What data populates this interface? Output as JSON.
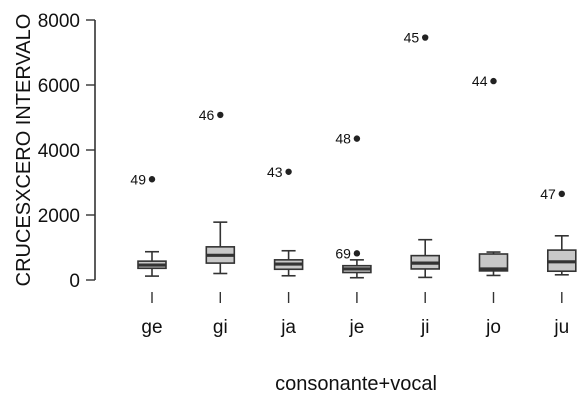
{
  "chart_data": {
    "type": "box",
    "title": "",
    "xlabel": "consonante+vocal",
    "ylabel": "CRUCESXCERO INTERVALO",
    "ylim": [
      0,
      8000
    ],
    "yticks": [
      0,
      2000,
      4000,
      6000,
      8000
    ],
    "y_tick_labels": [
      "0",
      "2000",
      "4000",
      "6000",
      "8000"
    ],
    "categories": [
      "ge",
      "gi",
      "ja",
      "je",
      "ji",
      "jo",
      "ju"
    ],
    "box_fill": "#c8c8c8",
    "stroke_color": "#333333",
    "boxes": [
      {
        "category": "ge",
        "whisker_low": 120,
        "q1": 360,
        "median": 460,
        "q3": 580,
        "whisker_high": 870
      },
      {
        "category": "gi",
        "whisker_low": 200,
        "q1": 520,
        "median": 760,
        "q3": 1020,
        "whisker_high": 1780
      },
      {
        "category": "ja",
        "whisker_low": 130,
        "q1": 330,
        "median": 490,
        "q3": 620,
        "whisker_high": 900
      },
      {
        "category": "je",
        "whisker_low": 70,
        "q1": 230,
        "median": 340,
        "q3": 440,
        "whisker_high": 620
      },
      {
        "category": "ji",
        "whisker_low": 80,
        "q1": 340,
        "median": 520,
        "q3": 750,
        "whisker_high": 1240
      },
      {
        "category": "jo",
        "whisker_low": 140,
        "q1": 280,
        "median": 340,
        "q3": 800,
        "whisker_high": 860
      },
      {
        "category": "ju",
        "whisker_low": 160,
        "q1": 270,
        "median": 560,
        "q3": 920,
        "whisker_high": 1360
      }
    ],
    "outliers": [
      {
        "category": "ge",
        "value": 3100,
        "label": "49"
      },
      {
        "category": "gi",
        "value": 5080,
        "label": "46"
      },
      {
        "category": "ja",
        "value": 3330,
        "label": "43"
      },
      {
        "category": "je",
        "value": 4350,
        "label": "48"
      },
      {
        "category": "je",
        "value": 820,
        "label": "69"
      },
      {
        "category": "ji",
        "value": 7460,
        "label": "45"
      },
      {
        "category": "jo",
        "value": 6120,
        "label": "44"
      },
      {
        "category": "ju",
        "value": 2650,
        "label": "47"
      }
    ]
  }
}
